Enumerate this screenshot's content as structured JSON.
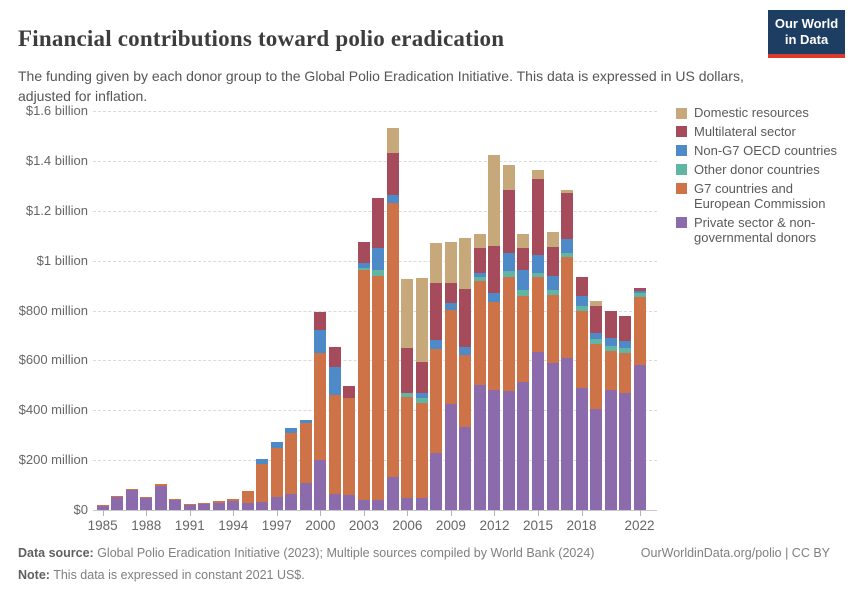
{
  "header": {
    "title": "Financial contributions toward polio eradication",
    "subtitle": "The funding given by each donor group to the Global Polio Eradication Initiative. This data is expressed in US dollars, adjusted for inflation.",
    "logo": {
      "line1": "Our World",
      "line2": "in Data",
      "bg_color": "#1d3d63",
      "accent_color": "#dc3a2e"
    }
  },
  "chart_data": {
    "type": "bar",
    "stacked": true,
    "title": "Financial contributions toward polio eradication",
    "xlabel": "",
    "ylabel": "",
    "unit": "US$, constant 2021",
    "ylim": [
      0,
      1600
    ],
    "grid": "horizontal-dashed",
    "legend_position": "top-right",
    "years": [
      1985,
      1986,
      1987,
      1988,
      1989,
      1990,
      1991,
      1992,
      1993,
      1994,
      1995,
      1996,
      1997,
      1998,
      1999,
      2000,
      2001,
      2002,
      2003,
      2004,
      2005,
      2006,
      2007,
      2008,
      2009,
      2010,
      2011,
      2012,
      2013,
      2014,
      2015,
      2016,
      2017,
      2018,
      2019,
      2020,
      2021,
      2022
    ],
    "series_note": "values in millions of US dollars, stacked bottom-to-top in array order",
    "series": [
      {
        "name": "Private sector & non-governmental donors",
        "color": "#8c6bac",
        "values": [
          16,
          54,
          82,
          48,
          98,
          44,
          20,
          23,
          28,
          36,
          27,
          33,
          53,
          64,
          107,
          200,
          64,
          60,
          42,
          42,
          134,
          48,
          47,
          227,
          424,
          334,
          501,
          481,
          478,
          512,
          635,
          588,
          608,
          488,
          404,
          481,
          468,
          581
        ]
      },
      {
        "name": "G7 countries and European Commission",
        "color": "#ce7248",
        "values": [
          4,
          2,
          2,
          4,
          6,
          2,
          5,
          6,
          9,
          10,
          49,
          151,
          194,
          246,
          243,
          428,
          397,
          388,
          922,
          898,
          1096,
          405,
          382,
          418,
          378,
          287,
          418,
          353,
          457,
          346,
          298,
          274,
          405,
          310,
          261,
          156,
          162,
          274
        ]
      },
      {
        "name": "Other donor countries",
        "color": "#62b5a2",
        "values": [
          0,
          0,
          0,
          0,
          0,
          0,
          0,
          0,
          0,
          0,
          0,
          0,
          0,
          0,
          0,
          0,
          0,
          0,
          7,
          21,
          0,
          16,
          20,
          0,
          0,
          0,
          14,
          0,
          23,
          24,
          18,
          20,
          19,
          20,
          21,
          20,
          20,
          15
        ]
      },
      {
        "name": "Non-G7 OECD countries",
        "color": "#4e8ac8",
        "values": [
          0,
          0,
          0,
          0,
          0,
          0,
          0,
          0,
          0,
          0,
          0,
          19,
          24,
          20,
          11,
          93,
          113,
          0,
          20,
          90,
          33,
          0,
          20,
          36,
          27,
          33,
          16,
          36,
          71,
          80,
          71,
          56,
          53,
          40,
          23,
          32,
          28,
          9
        ]
      },
      {
        "name": "Multilateral sector",
        "color": "#a54b5c",
        "values": [
          0,
          0,
          0,
          0,
          0,
          0,
          0,
          0,
          0,
          0,
          0,
          0,
          0,
          0,
          0,
          71,
          80,
          49,
          83,
          200,
          167,
          180,
          124,
          229,
          83,
          234,
          100,
          188,
          254,
          90,
          304,
          118,
          187,
          75,
          111,
          108,
          100,
          10
        ]
      },
      {
        "name": "Domestic resources",
        "color": "#c7a87b",
        "values": [
          0,
          0,
          0,
          0,
          0,
          0,
          0,
          0,
          0,
          0,
          0,
          0,
          0,
          0,
          0,
          0,
          0,
          0,
          0,
          0,
          100,
          276,
          336,
          162,
          164,
          203,
          57,
          365,
          100,
          53,
          37,
          60,
          13,
          0,
          20,
          0,
          0,
          0
        ]
      }
    ],
    "y_ticks": [
      {
        "value": 0,
        "label": "$0"
      },
      {
        "value": 200,
        "label": "$200 million"
      },
      {
        "value": 400,
        "label": "$400 million"
      },
      {
        "value": 600,
        "label": "$600 million"
      },
      {
        "value": 800,
        "label": "$800 million"
      },
      {
        "value": 1000,
        "label": "$1 billion"
      },
      {
        "value": 1200,
        "label": "$1.2 billion"
      },
      {
        "value": 1400,
        "label": "$1.4 billion"
      },
      {
        "value": 1600,
        "label": "$1.6 billion"
      }
    ],
    "x_tick_years": [
      1985,
      1988,
      1991,
      1994,
      1997,
      2000,
      2003,
      2006,
      2009,
      2012,
      2015,
      2018,
      2022
    ]
  },
  "footer": {
    "source_label": "Data source:",
    "source_text": " Global Polio Eradication Initiative (2023); Multiple sources compiled by World Bank (2024)",
    "note_label": "Note:",
    "note_text": " This data is expressed in constant 2021 US$.",
    "link": "OurWorldinData.org/polio | CC BY"
  }
}
